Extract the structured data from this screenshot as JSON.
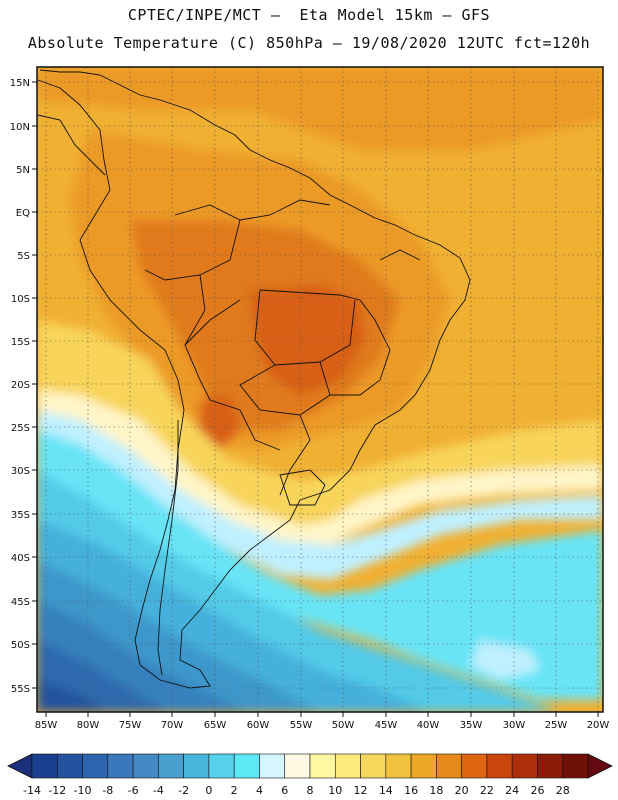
{
  "header": {
    "title_line1": "CPTEC/INPE/MCT –  Eta Model 15km – GFS",
    "title_line2": "Absolute Temperature (C) 850hPa – 19/08/2020 12UTC fct=120h"
  },
  "axes": {
    "lat_labels": [
      "15N",
      "10N",
      "5N",
      "EQ",
      "5S",
      "10S",
      "15S",
      "20S",
      "25S",
      "30S",
      "35S",
      "40S",
      "45S",
      "50S",
      "55S"
    ],
    "lon_labels": [
      "85W",
      "80W",
      "75W",
      "70W",
      "65W",
      "60W",
      "55W",
      "50W",
      "45W",
      "40W",
      "35W",
      "30W",
      "25W",
      "20W"
    ]
  },
  "colorbar": {
    "labels": [
      "-14",
      "-12",
      "-10",
      "-8",
      "-6",
      "-4",
      "-2",
      "0",
      "2",
      "4",
      "6",
      "8",
      "10",
      "12",
      "14",
      "16",
      "18",
      "20",
      "22",
      "24",
      "26",
      "28"
    ],
    "colors": [
      "#1a3f8f",
      "#24519e",
      "#2e63ad",
      "#3a78bb",
      "#4389c4",
      "#4a9fcf",
      "#48b6dc",
      "#58d2ec",
      "#5fe8f5",
      "#d6f6ff",
      "#fff8e2",
      "#fff8a0",
      "#fdea7a",
      "#f8d85c",
      "#f2c13e",
      "#eea828",
      "#e8891c",
      "#de6612",
      "#c8460c",
      "#ac2e0b",
      "#8c1c0a",
      "#6e1208"
    ],
    "low_end_color": "#1c2f7a",
    "high_end_color": "#640a12"
  },
  "map_colors": {
    "c24": "#d85f12",
    "c22": "#e07a1c",
    "c20": "#ec9a26",
    "c18": "#f0b032",
    "c16": "#f4c23c",
    "c14": "#f8d45a",
    "c12": "#fde690",
    "c10": "#fff5c8",
    "c6": "#bff0ff",
    "c4": "#67e4f6",
    "c2": "#52cbe8",
    "c0": "#45b0db",
    "cm2": "#3e97cb",
    "cm4": "#3680bd",
    "cm6": "#2e69ad",
    "cm8": "#24529d",
    "border": "#111111"
  }
}
